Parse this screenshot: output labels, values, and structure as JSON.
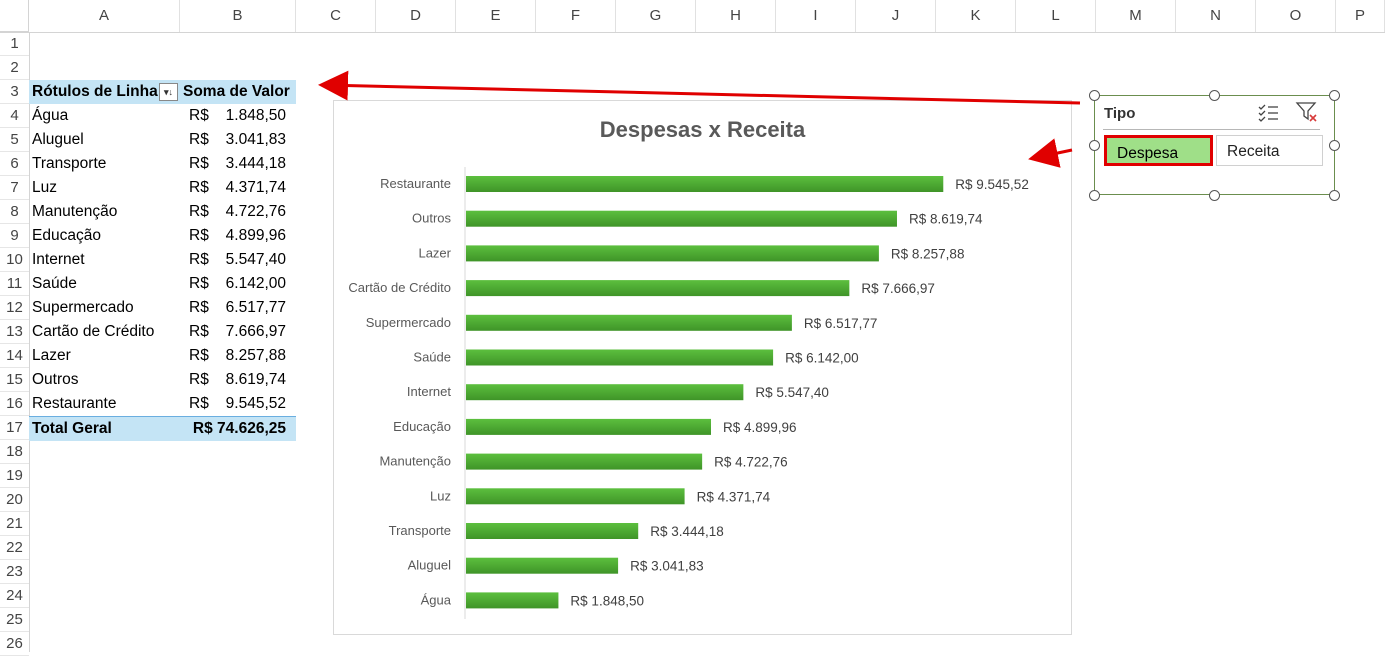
{
  "columns": [
    "A",
    "B",
    "C",
    "D",
    "E",
    "F",
    "G",
    "H",
    "I",
    "J",
    "K",
    "L",
    "M",
    "N",
    "O",
    "P"
  ],
  "rows": [
    "1",
    "2",
    "3",
    "4",
    "5",
    "6",
    "7",
    "8",
    "9",
    "10",
    "11",
    "12",
    "13",
    "14",
    "15",
    "16",
    "17",
    "18",
    "19",
    "20",
    "21",
    "22",
    "23",
    "24",
    "25",
    "26"
  ],
  "pivot": {
    "header_label": "Rótulos de Linha",
    "header_value": "Soma de Valor",
    "currency": "R$",
    "items": [
      {
        "label": "Água",
        "value": "1.848,50"
      },
      {
        "label": "Aluguel",
        "value": "3.041,83"
      },
      {
        "label": "Transporte",
        "value": "3.444,18"
      },
      {
        "label": "Luz",
        "value": "4.371,74"
      },
      {
        "label": "Manutenção",
        "value": "4.722,76"
      },
      {
        "label": "Educação",
        "value": "4.899,96"
      },
      {
        "label": "Internet",
        "value": "5.547,40"
      },
      {
        "label": "Saúde",
        "value": "6.142,00"
      },
      {
        "label": "Supermercado",
        "value": "6.517,77"
      },
      {
        "label": "Cartão de Crédito",
        "value": "7.666,97"
      },
      {
        "label": "Lazer",
        "value": "8.257,88"
      },
      {
        "label": "Outros",
        "value": "8.619,74"
      },
      {
        "label": "Restaurante",
        "value": "9.545,52"
      }
    ],
    "total_label": "Total Geral",
    "total_value": "R$ 74.626,25"
  },
  "chart_data": {
    "type": "bar",
    "orientation": "horizontal",
    "title": "Despesas x Receita",
    "categories": [
      "Restaurante",
      "Outros",
      "Lazer",
      "Cartão de Crédito",
      "Supermercado",
      "Saúde",
      "Internet",
      "Educação",
      "Manutenção",
      "Luz",
      "Transporte",
      "Aluguel",
      "Água"
    ],
    "values": [
      9545.52,
      8619.74,
      8257.88,
      7666.97,
      6517.77,
      6142.0,
      5547.4,
      4899.96,
      4722.76,
      4371.74,
      3444.18,
      3041.83,
      1848.5
    ],
    "data_labels": [
      "R$ 9.545,52",
      "R$ 8.619,74",
      "R$ 8.257,88",
      "R$ 7.666,97",
      "R$ 6.517,77",
      "R$ 6.142,00",
      "R$ 5.547,40",
      "R$ 4.899,96",
      "R$ 4.722,76",
      "R$ 4.371,74",
      "R$ 3.444,18",
      "R$ 3.041,83",
      "R$ 1.848,50"
    ],
    "bar_color": "#4ca733",
    "xlim": [
      0,
      10000
    ],
    "grid": false,
    "legend": "none"
  },
  "slicer": {
    "title": "Tipo",
    "options": [
      {
        "label": "Despesa",
        "selected": true
      },
      {
        "label": "Receita",
        "selected": false
      }
    ],
    "selected_color": "#9fdf88",
    "highlight_border_color": "#e00000"
  },
  "annotations": {
    "arrow_color": "#e00000"
  }
}
